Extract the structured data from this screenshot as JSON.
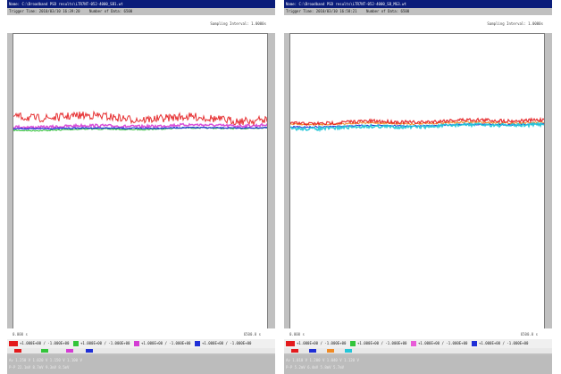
{
  "left": {
    "title": "Name: C:\\Broadband PSD results\\LTR7NT-052-4000_SB1.wt",
    "trigger_time": "Trigger Time: 2010/03/10 16:39:20",
    "num_samples": "Number of Data: 6500",
    "sampling": "Sampling Interval: 1.0000s",
    "x_start": "0.000 s",
    "x_end": "6500.0 s",
    "channels": [
      {
        "label": "CH1",
        "range": "+1.000E+00 / -1.000E+00",
        "color": "#e31a1c"
      },
      {
        "label": "CH2",
        "range": "+1.000E+00 / -1.000E+00",
        "color": "#33c43a"
      },
      {
        "label": "CH3",
        "range": "+1.000E+00 / -1.000E+00",
        "color": "#d43cd4"
      },
      {
        "label": "CH4",
        "range": "+1.000E+00 / -1.000E+00",
        "color": "#1f2fd6"
      }
    ],
    "stats_row1": "Av  1.250 V   1.020 V   1.150 V   1.100 V",
    "stats_row2": "P-P 22.1mV    8.7mV     9.3mV     8.5mV"
  },
  "right": {
    "title": "Name: C:\\Broadband PSD results\\LTR7NT-052-4000_SB_MG3.wt",
    "trigger_time": "Trigger Time: 2010/03/10 16:58:21",
    "num_samples": "Number of Data: 6500",
    "sampling": "Sampling Interval: 1.0000s",
    "x_start": "0.000 s",
    "x_end": "6500.0 s",
    "channels": [
      {
        "label": "CH1",
        "range": "+1.000E+00 / -1.000E+00",
        "color": "#e31a1c"
      },
      {
        "label": "CH2",
        "range": "+1.000E+00 / -1.000E+00",
        "color": "#33c43a"
      },
      {
        "label": "CH3",
        "range": "+1.000E+00 / -1.000E+00",
        "color": "#e85cd8"
      },
      {
        "label": "CH4",
        "range": "+1.000E+00 / -1.000E+00",
        "color": "#1f2fd6"
      }
    ],
    "stats_row1": "Av  1.010 V   1.200 V   1.040 V   1.120 V",
    "stats_row2": "P-P 5.2mV     6.4mV     5.8mV     5.7mV"
  },
  "colors": {
    "titlebar": "#0a1c7a",
    "panel_bg": "#c0c0c0",
    "trace_red": "#e31a1c",
    "trace_green": "#33c43a",
    "trace_magenta": "#d43cd4",
    "trace_blue": "#1f2fd6",
    "trace_cyan": "#24c6d8",
    "trace_orange": "#f08a24"
  }
}
